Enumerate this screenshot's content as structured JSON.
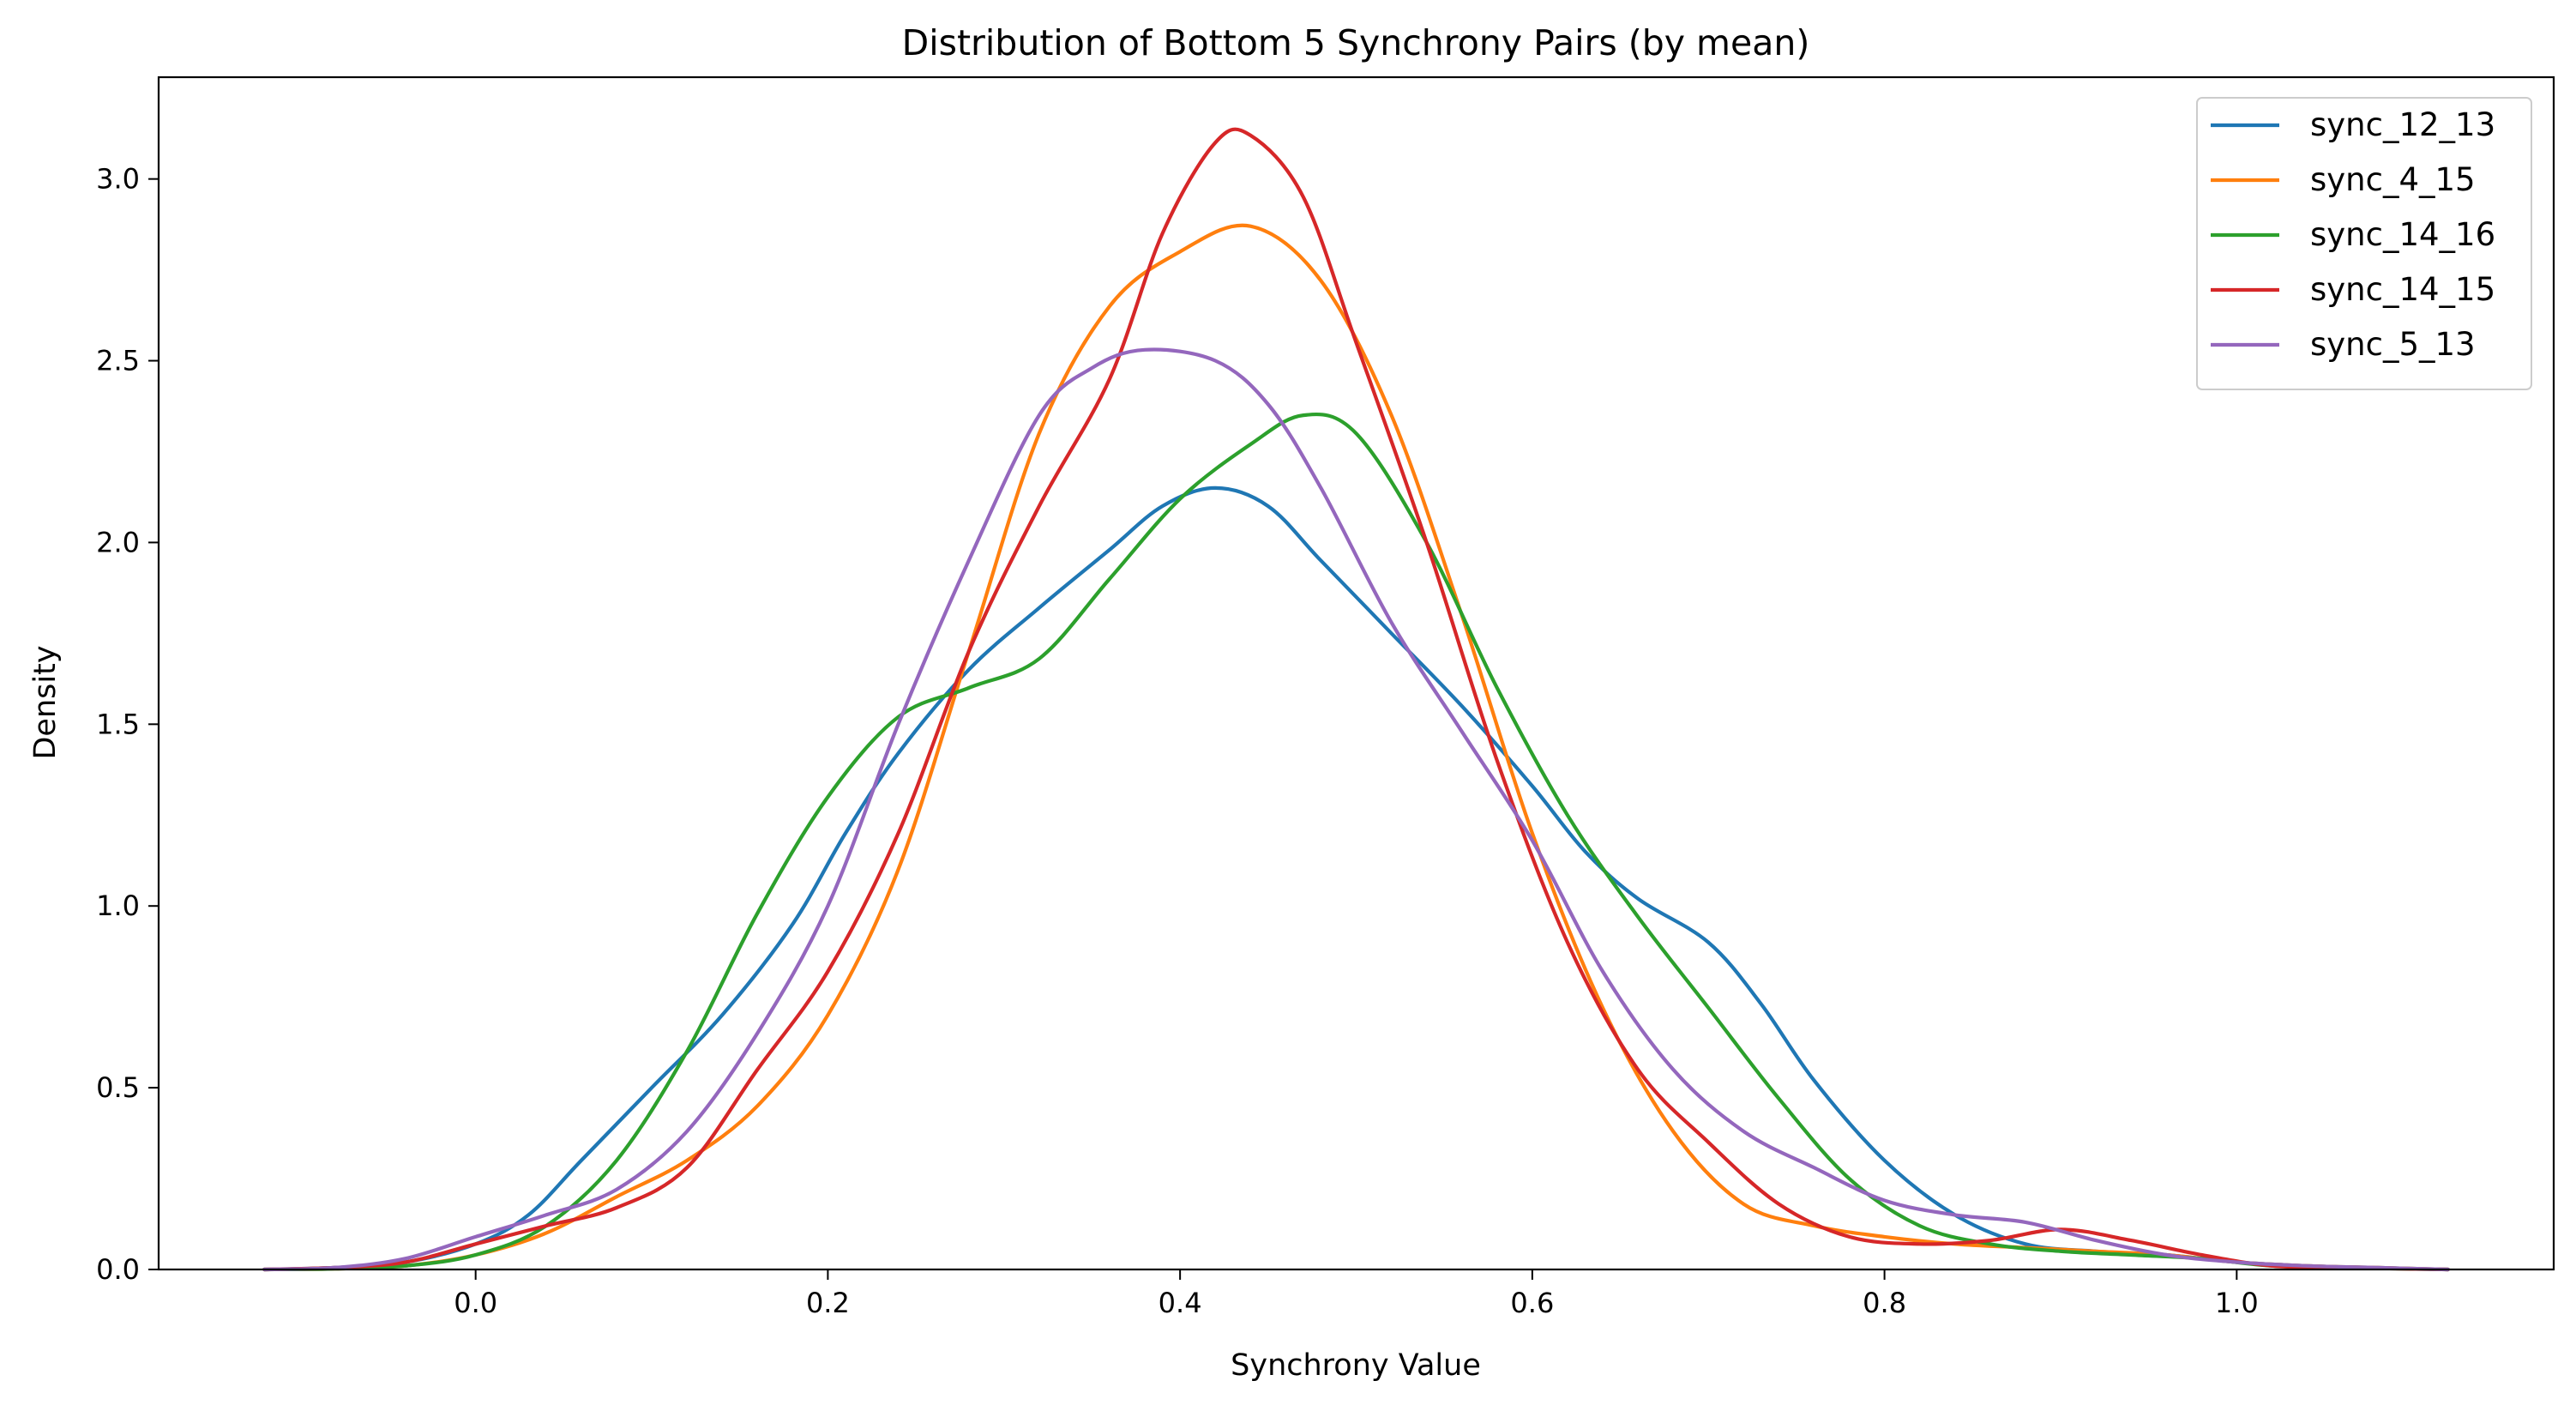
{
  "chart_data": {
    "type": "line",
    "title": "Distribution of Bottom 5 Synchrony Pairs (by mean)",
    "xlabel": "Synchrony Value",
    "ylabel": "Density",
    "xlim": [
      -0.18,
      1.18
    ],
    "ylim": [
      0,
      3.28
    ],
    "x_ticks": [
      0.0,
      0.2,
      0.4,
      0.6,
      0.8,
      1.0
    ],
    "x_tick_labels": [
      "0.0",
      "0.2",
      "0.4",
      "0.6",
      "0.8",
      "1.0"
    ],
    "y_ticks": [
      0.0,
      0.5,
      1.0,
      1.5,
      2.0,
      2.5,
      3.0
    ],
    "y_tick_labels": [
      "0.0",
      "0.5",
      "1.0",
      "1.5",
      "2.0",
      "2.5",
      "3.0"
    ],
    "grid": false,
    "legend_position": "upper right",
    "series": [
      {
        "name": "sync_12_13",
        "color": "#1f77b4",
        "points": [
          [
            -0.12,
            0.0
          ],
          [
            -0.08,
            0.005
          ],
          [
            -0.04,
            0.02
          ],
          [
            0.0,
            0.07
          ],
          [
            0.03,
            0.15
          ],
          [
            0.06,
            0.3
          ],
          [
            0.1,
            0.5
          ],
          [
            0.14,
            0.7
          ],
          [
            0.18,
            0.95
          ],
          [
            0.21,
            1.2
          ],
          [
            0.24,
            1.42
          ],
          [
            0.28,
            1.65
          ],
          [
            0.32,
            1.82
          ],
          [
            0.36,
            1.98
          ],
          [
            0.39,
            2.1
          ],
          [
            0.42,
            2.15
          ],
          [
            0.45,
            2.1
          ],
          [
            0.48,
            1.95
          ],
          [
            0.52,
            1.75
          ],
          [
            0.56,
            1.55
          ],
          [
            0.6,
            1.33
          ],
          [
            0.63,
            1.15
          ],
          [
            0.66,
            1.02
          ],
          [
            0.7,
            0.9
          ],
          [
            0.73,
            0.73
          ],
          [
            0.76,
            0.52
          ],
          [
            0.8,
            0.3
          ],
          [
            0.84,
            0.15
          ],
          [
            0.88,
            0.07
          ],
          [
            0.92,
            0.05
          ],
          [
            0.96,
            0.04
          ],
          [
            1.0,
            0.02
          ],
          [
            1.04,
            0.01
          ],
          [
            1.08,
            0.005
          ],
          [
            1.12,
            0.0
          ]
        ]
      },
      {
        "name": "sync_4_15",
        "color": "#ff7f0e",
        "points": [
          [
            -0.12,
            0.0
          ],
          [
            -0.08,
            0.002
          ],
          [
            -0.04,
            0.01
          ],
          [
            0.0,
            0.04
          ],
          [
            0.04,
            0.1
          ],
          [
            0.08,
            0.2
          ],
          [
            0.12,
            0.3
          ],
          [
            0.16,
            0.45
          ],
          [
            0.2,
            0.7
          ],
          [
            0.24,
            1.1
          ],
          [
            0.28,
            1.7
          ],
          [
            0.32,
            2.3
          ],
          [
            0.36,
            2.65
          ],
          [
            0.4,
            2.8
          ],
          [
            0.44,
            2.87
          ],
          [
            0.48,
            2.72
          ],
          [
            0.52,
            2.35
          ],
          [
            0.56,
            1.8
          ],
          [
            0.6,
            1.2
          ],
          [
            0.64,
            0.72
          ],
          [
            0.68,
            0.38
          ],
          [
            0.72,
            0.18
          ],
          [
            0.76,
            0.12
          ],
          [
            0.8,
            0.09
          ],
          [
            0.84,
            0.07
          ],
          [
            0.88,
            0.06
          ],
          [
            0.92,
            0.05
          ],
          [
            0.96,
            0.04
          ],
          [
            1.0,
            0.02
          ],
          [
            1.04,
            0.01
          ],
          [
            1.08,
            0.005
          ],
          [
            1.12,
            0.0
          ]
        ]
      },
      {
        "name": "sync_14_16",
        "color": "#2ca02c",
        "points": [
          [
            -0.12,
            0.0
          ],
          [
            -0.08,
            0.002
          ],
          [
            -0.04,
            0.01
          ],
          [
            0.0,
            0.04
          ],
          [
            0.04,
            0.12
          ],
          [
            0.08,
            0.3
          ],
          [
            0.12,
            0.6
          ],
          [
            0.16,
            0.98
          ],
          [
            0.2,
            1.3
          ],
          [
            0.24,
            1.52
          ],
          [
            0.28,
            1.6
          ],
          [
            0.32,
            1.68
          ],
          [
            0.36,
            1.9
          ],
          [
            0.4,
            2.12
          ],
          [
            0.44,
            2.27
          ],
          [
            0.47,
            2.35
          ],
          [
            0.5,
            2.3
          ],
          [
            0.54,
            2.0
          ],
          [
            0.58,
            1.6
          ],
          [
            0.62,
            1.25
          ],
          [
            0.66,
            0.97
          ],
          [
            0.7,
            0.72
          ],
          [
            0.74,
            0.47
          ],
          [
            0.78,
            0.25
          ],
          [
            0.82,
            0.12
          ],
          [
            0.86,
            0.07
          ],
          [
            0.9,
            0.05
          ],
          [
            0.94,
            0.04
          ],
          [
            0.98,
            0.03
          ],
          [
            1.02,
            0.01
          ],
          [
            1.06,
            0.005
          ],
          [
            1.12,
            0.0
          ]
        ]
      },
      {
        "name": "sync_14_15",
        "color": "#d62728",
        "points": [
          [
            -0.12,
            0.0
          ],
          [
            -0.08,
            0.005
          ],
          [
            -0.04,
            0.02
          ],
          [
            0.0,
            0.07
          ],
          [
            0.04,
            0.12
          ],
          [
            0.08,
            0.17
          ],
          [
            0.12,
            0.28
          ],
          [
            0.16,
            0.55
          ],
          [
            0.2,
            0.82
          ],
          [
            0.24,
            1.2
          ],
          [
            0.28,
            1.7
          ],
          [
            0.32,
            2.1
          ],
          [
            0.36,
            2.45
          ],
          [
            0.39,
            2.85
          ],
          [
            0.42,
            3.1
          ],
          [
            0.44,
            3.12
          ],
          [
            0.47,
            2.95
          ],
          [
            0.5,
            2.55
          ],
          [
            0.54,
            2.0
          ],
          [
            0.58,
            1.4
          ],
          [
            0.62,
            0.9
          ],
          [
            0.66,
            0.55
          ],
          [
            0.7,
            0.35
          ],
          [
            0.74,
            0.18
          ],
          [
            0.78,
            0.09
          ],
          [
            0.82,
            0.07
          ],
          [
            0.86,
            0.08
          ],
          [
            0.9,
            0.11
          ],
          [
            0.94,
            0.08
          ],
          [
            0.98,
            0.04
          ],
          [
            1.02,
            0.01
          ],
          [
            1.06,
            0.005
          ],
          [
            1.12,
            0.0
          ]
        ]
      },
      {
        "name": "sync_5_13",
        "color": "#9467bd",
        "points": [
          [
            -0.12,
            0.0
          ],
          [
            -0.08,
            0.005
          ],
          [
            -0.04,
            0.03
          ],
          [
            0.0,
            0.09
          ],
          [
            0.04,
            0.15
          ],
          [
            0.08,
            0.22
          ],
          [
            0.12,
            0.38
          ],
          [
            0.16,
            0.65
          ],
          [
            0.2,
            1.0
          ],
          [
            0.24,
            1.5
          ],
          [
            0.28,
            1.95
          ],
          [
            0.32,
            2.35
          ],
          [
            0.35,
            2.48
          ],
          [
            0.38,
            2.53
          ],
          [
            0.42,
            2.5
          ],
          [
            0.45,
            2.38
          ],
          [
            0.48,
            2.15
          ],
          [
            0.52,
            1.78
          ],
          [
            0.56,
            1.48
          ],
          [
            0.6,
            1.18
          ],
          [
            0.64,
            0.82
          ],
          [
            0.68,
            0.55
          ],
          [
            0.72,
            0.38
          ],
          [
            0.76,
            0.28
          ],
          [
            0.8,
            0.19
          ],
          [
            0.84,
            0.15
          ],
          [
            0.88,
            0.13
          ],
          [
            0.92,
            0.08
          ],
          [
            0.96,
            0.04
          ],
          [
            1.0,
            0.02
          ],
          [
            1.04,
            0.01
          ],
          [
            1.08,
            0.005
          ],
          [
            1.12,
            0.0
          ]
        ]
      }
    ]
  }
}
